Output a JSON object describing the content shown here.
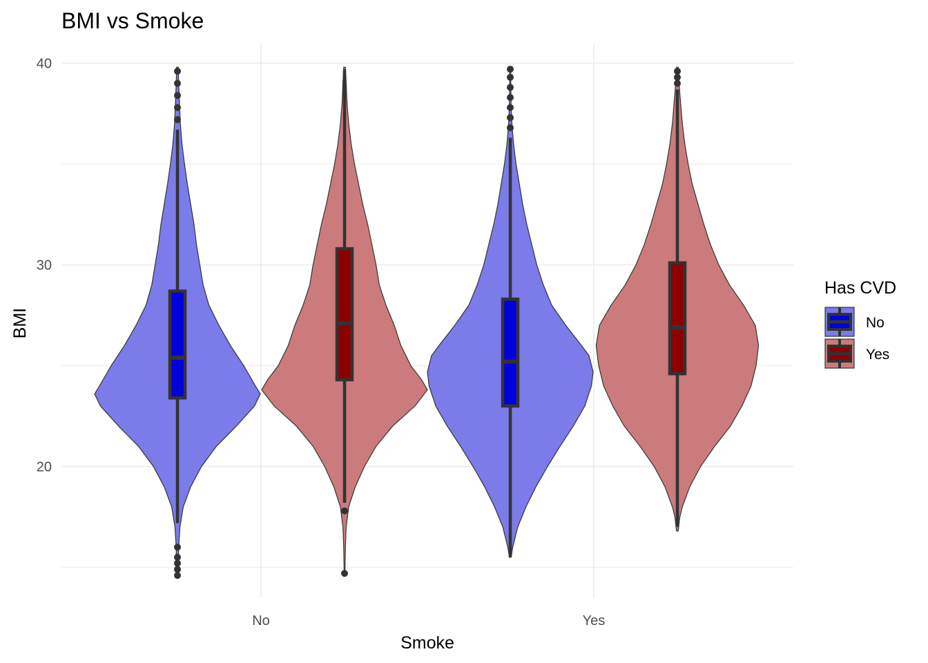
{
  "chart_data": {
    "type": "violin",
    "title": "BMI vs Smoke",
    "xlabel": "Smoke",
    "ylabel": "BMI",
    "categories": [
      "No",
      "Yes"
    ],
    "ylim": [
      14,
      41
    ],
    "y_ticks": [
      20,
      30,
      40
    ],
    "grid": true,
    "legend": {
      "title": "Has CVD",
      "placement": "right",
      "entries": [
        {
          "label": "No",
          "violin_color": "#7b7bea",
          "box_color": "#0000dd"
        },
        {
          "label": "Yes",
          "violin_color": "#cb7b7b",
          "box_color": "#8b0000"
        }
      ]
    },
    "series": [
      {
        "name": "No",
        "violin_color": "#7b7bea",
        "box_color": "#0000dd",
        "groups": [
          {
            "category": "No",
            "box": {
              "q1": 23.4,
              "median": 25.4,
              "q3": 28.7,
              "lower_whisker": 17.2,
              "upper_whisker": 36.7
            },
            "outliers": [
              14.6,
              14.9,
              15.2,
              15.5,
              16.0,
              37.2,
              37.8,
              38.4,
              39.0,
              39.6
            ],
            "density": [
              [
                14.5,
                0.01
              ],
              [
                16,
                0.015
              ],
              [
                17,
                0.03
              ],
              [
                18,
                0.07
              ],
              [
                19,
                0.16
              ],
              [
                20,
                0.29
              ],
              [
                21,
                0.47
              ],
              [
                22,
                0.71
              ],
              [
                23,
                0.93
              ],
              [
                23.6,
                1.0
              ],
              [
                24,
                0.94
              ],
              [
                25,
                0.8
              ],
              [
                26,
                0.64
              ],
              [
                27,
                0.5
              ],
              [
                28,
                0.38
              ],
              [
                29,
                0.31
              ],
              [
                30,
                0.27
              ],
              [
                31,
                0.23
              ],
              [
                32,
                0.2
              ],
              [
                33,
                0.16
              ],
              [
                34,
                0.12
              ],
              [
                35,
                0.085
              ],
              [
                36,
                0.055
              ],
              [
                37,
                0.035
              ],
              [
                38,
                0.025
              ],
              [
                39,
                0.015
              ],
              [
                39.8,
                0.01
              ]
            ]
          },
          {
            "category": "Yes",
            "box": {
              "q1": 23.0,
              "median": 25.2,
              "q3": 28.3,
              "lower_whisker": 15.5,
              "upper_whisker": 36.3
            },
            "outliers": [
              36.8,
              37.3,
              37.8,
              38.3,
              38.8,
              39.3,
              39.7
            ],
            "density": [
              [
                15.5,
                0.01
              ],
              [
                16,
                0.03
              ],
              [
                17,
                0.09
              ],
              [
                18,
                0.19
              ],
              [
                19,
                0.31
              ],
              [
                20,
                0.45
              ],
              [
                21,
                0.6
              ],
              [
                22,
                0.76
              ],
              [
                23,
                0.9
              ],
              [
                24,
                0.98
              ],
              [
                24.7,
                1.0
              ],
              [
                25.5,
                0.95
              ],
              [
                26,
                0.86
              ],
              [
                27,
                0.67
              ],
              [
                28,
                0.5
              ],
              [
                29,
                0.4
              ],
              [
                30,
                0.32
              ],
              [
                31,
                0.26
              ],
              [
                32,
                0.2
              ],
              [
                33,
                0.15
              ],
              [
                34,
                0.11
              ],
              [
                35,
                0.07
              ],
              [
                36,
                0.04
              ],
              [
                37,
                0.02
              ],
              [
                38,
                0.01
              ],
              [
                39.8,
                0.005
              ]
            ]
          }
        ]
      },
      {
        "name": "Yes",
        "violin_color": "#cb7b7b",
        "box_color": "#8b0000",
        "groups": [
          {
            "category": "No",
            "box": {
              "q1": 24.3,
              "median": 27.1,
              "q3": 30.8,
              "lower_whisker": 18.2,
              "upper_whisker": 39.7
            },
            "outliers": [
              14.7,
              17.8
            ],
            "density": [
              [
                14.8,
                0.005
              ],
              [
                16,
                0.01
              ],
              [
                17,
                0.02
              ],
              [
                18,
                0.05
              ],
              [
                19,
                0.13
              ],
              [
                20,
                0.24
              ],
              [
                21,
                0.38
              ],
              [
                22,
                0.58
              ],
              [
                23,
                0.85
              ],
              [
                23.8,
                1.0
              ],
              [
                24.3,
                0.93
              ],
              [
                25,
                0.8
              ],
              [
                26,
                0.68
              ],
              [
                27,
                0.6
              ],
              [
                28,
                0.5
              ],
              [
                29,
                0.42
              ],
              [
                30,
                0.38
              ],
              [
                31,
                0.33
              ],
              [
                32,
                0.28
              ],
              [
                33,
                0.22
              ],
              [
                34,
                0.17
              ],
              [
                35,
                0.12
              ],
              [
                36,
                0.08
              ],
              [
                37,
                0.05
              ],
              [
                38,
                0.03
              ],
              [
                39,
                0.02
              ],
              [
                39.8,
                0.01
              ]
            ]
          },
          {
            "category": "Yes",
            "box": {
              "q1": 24.6,
              "median": 26.9,
              "q3": 30.1,
              "lower_whisker": 17.0,
              "upper_whisker": 38.7
            },
            "outliers": [
              39.0,
              39.3,
              39.6
            ],
            "density": [
              [
                16.8,
                0.01
              ],
              [
                17.5,
                0.03
              ],
              [
                18,
                0.06
              ],
              [
                19,
                0.15
              ],
              [
                20,
                0.28
              ],
              [
                21,
                0.45
              ],
              [
                22,
                0.64
              ],
              [
                23,
                0.78
              ],
              [
                24,
                0.89
              ],
              [
                25,
                0.95
              ],
              [
                26,
                0.98
              ],
              [
                27,
                0.94
              ],
              [
                28,
                0.8
              ],
              [
                29,
                0.63
              ],
              [
                30,
                0.5
              ],
              [
                31,
                0.4
              ],
              [
                32,
                0.32
              ],
              [
                33,
                0.25
              ],
              [
                34,
                0.18
              ],
              [
                35,
                0.13
              ],
              [
                36,
                0.09
              ],
              [
                37,
                0.06
              ],
              [
                38,
                0.04
              ],
              [
                39,
                0.02
              ],
              [
                39.8,
                0.01
              ]
            ]
          }
        ]
      }
    ]
  }
}
